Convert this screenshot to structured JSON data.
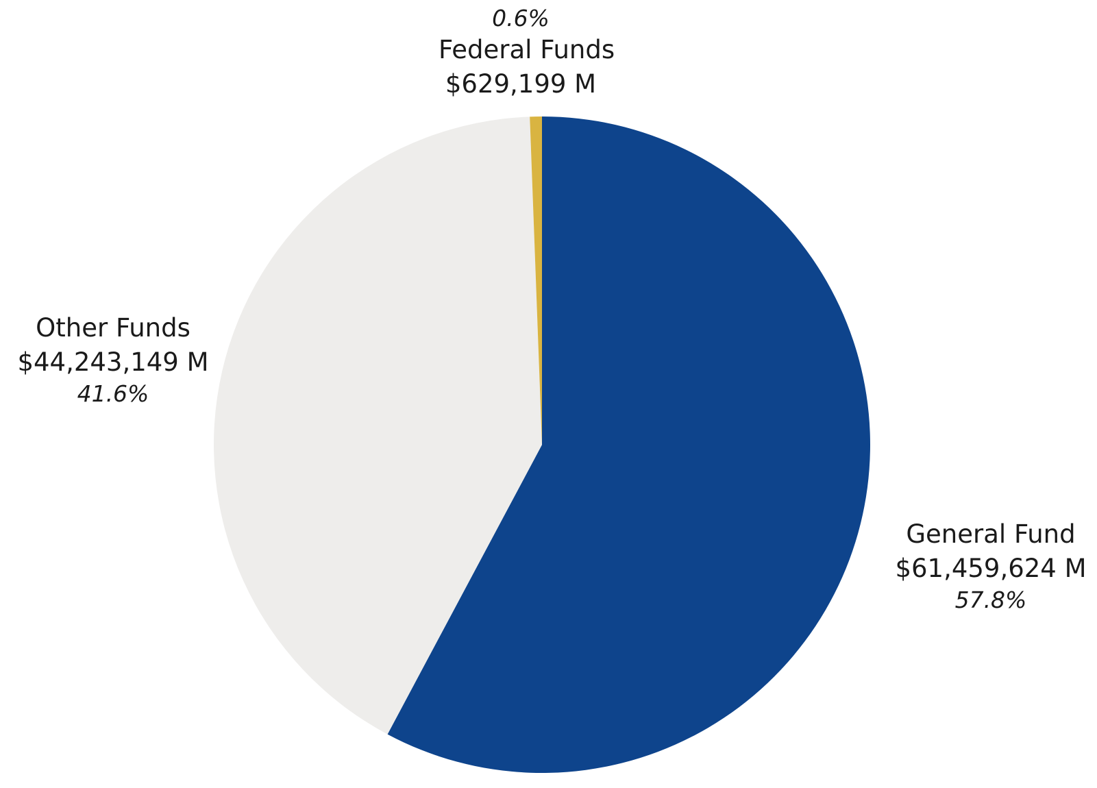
{
  "chart_data": {
    "type": "pie",
    "start_angle_deg": 0,
    "direction": "clockwise",
    "slices": [
      {
        "name": "General Fund",
        "value": 61459624,
        "amount_label": "$61,459,624 M",
        "percent_label": "57.8%",
        "color": "#0e448c"
      },
      {
        "name": "Other Funds",
        "value": 44243149,
        "amount_label": "$44,243,149 M",
        "percent_label": "41.6%",
        "color": "#eeedeb"
      },
      {
        "name": "Federal Funds",
        "value": 629199,
        "amount_label": "$629,199 M",
        "percent_label": "0.6%",
        "color": "#d9b441"
      }
    ]
  }
}
